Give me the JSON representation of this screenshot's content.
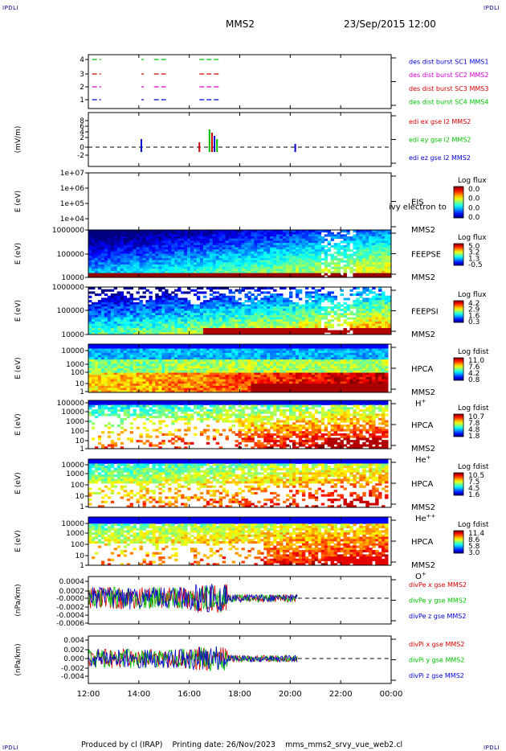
{
  "header": {
    "corner_label": "IPDLI",
    "spacecraft": "MMS2",
    "datetime": "23/Sep/2015 12:00"
  },
  "footer": {
    "produced_by": "Produced by cl (IRAP)",
    "printing_date": "Printing date: 26/Nov/2023",
    "script_name": "mms_mms2_srvy_vue_web2.cl"
  },
  "colors": {
    "red": "#d40000",
    "green": "#00c000",
    "blue": "#0000d0",
    "magenta": "#d000d0"
  },
  "chart_data": [
    {
      "id": "burst",
      "type": "line",
      "yticks": [
        "4",
        "3",
        "2",
        "1"
      ],
      "ylim": [
        0.5,
        4.5
      ],
      "legend": [
        {
          "label": "des dist burst SC1 MMS1",
          "color": "#0000d0"
        },
        {
          "label": "des dist burst SC2 MMS2",
          "color": "#d000d0"
        },
        {
          "label": "des dist burst SC3 MMS3",
          "color": "#d40000"
        },
        {
          "label": "des dist burst SC4 MMS4",
          "color": "#00c000"
        }
      ],
      "series": [
        {
          "level": 4,
          "color": "#00c000",
          "segments": [
            [
              12.15,
              12.5
            ],
            [
              14.1,
              14.2
            ],
            [
              14.6,
              15.1
            ],
            [
              16.4,
              17.2
            ]
          ]
        },
        {
          "level": 3,
          "color": "#d40000",
          "segments": [
            [
              12.15,
              12.5
            ],
            [
              14.1,
              14.2
            ],
            [
              14.6,
              15.1
            ],
            [
              16.4,
              17.2
            ]
          ]
        },
        {
          "level": 2,
          "color": "#d000d0",
          "segments": [
            [
              12.15,
              12.5
            ],
            [
              14.1,
              14.2
            ],
            [
              14.6,
              15.1
            ],
            [
              16.4,
              17.2
            ]
          ]
        },
        {
          "level": 1,
          "color": "#0000d0",
          "segments": [
            [
              12.15,
              12.5
            ],
            [
              14.1,
              14.2
            ],
            [
              14.6,
              15.1
            ],
            [
              16.4,
              17.2
            ]
          ]
        }
      ]
    },
    {
      "id": "edi",
      "type": "line",
      "ylabel": "(mV/m)",
      "yticks": [
        "8",
        "6",
        "4",
        "2",
        "0",
        "-2"
      ],
      "ylim": [
        -4,
        9
      ],
      "legend": [
        {
          "label": "edi ex gse l2 MMS2",
          "color": "#d40000"
        },
        {
          "label": "edi ey gse l2 MMS2",
          "color": "#00c000"
        },
        {
          "label": "edi ez gse l2 MMS2",
          "color": "#0000d0"
        }
      ]
    },
    {
      "id": "eis",
      "type": "heatmap",
      "ylabel": "E (eV)",
      "yticks": [
        "1e+07",
        "1e+06",
        "1e+05",
        "1e+04"
      ],
      "ylim": [
        10000,
        10000000
      ],
      "name": "EIS",
      "name2": "MMS2",
      "overlay": "ivy electron to",
      "cbar_title": "Log flux",
      "cbar_ticks": [
        "0.0",
        "0.0",
        "0.0",
        "0.0"
      ]
    },
    {
      "id": "feepse",
      "type": "heatmap",
      "ylabel": "E (eV)",
      "yticks": [
        "1000000",
        "100000",
        "10000"
      ],
      "ylim": [
        10000,
        1000000
      ],
      "name": "FEEPSE",
      "name2": "MMS2",
      "cbar_title": "Log flux",
      "cbar_ticks": [
        "5.0",
        "3.2",
        "1.3",
        "-0.5"
      ]
    },
    {
      "id": "feepsi",
      "type": "heatmap",
      "ylabel": "E (eV)",
      "yticks": [
        "1000000",
        "100000",
        "10000"
      ],
      "ylim": [
        10000,
        1000000
      ],
      "name": "FEEPSI",
      "name2": "MMS2",
      "cbar_title": "Log flux",
      "cbar_ticks": [
        "4.2",
        "2.9",
        "1.6",
        "0.3"
      ]
    },
    {
      "id": "hpca_h",
      "type": "heatmap",
      "ylabel": "E (eV)",
      "yticks": [
        "10000",
        "1000",
        "100",
        "10",
        "1"
      ],
      "ylim": [
        1,
        30000
      ],
      "name": "HPCA",
      "name2": "MMS2",
      "species": "H",
      "species_sup": "+",
      "cbar_title": "Log fdist",
      "cbar_ticks": [
        "11.0",
        "7.6",
        "4.2",
        "0.8"
      ]
    },
    {
      "id": "hpca_he",
      "type": "heatmap",
      "ylabel": "E (eV)",
      "yticks": [
        "100000",
        "10000",
        "1000",
        "100",
        "10",
        "1"
      ],
      "ylim": [
        1,
        100000
      ],
      "name": "HPCA",
      "name2": "MMS2",
      "species": "He",
      "species_sup": "+",
      "cbar_title": "Log fdist",
      "cbar_ticks": [
        "10.7",
        "7.8",
        "4.8",
        "1.8"
      ]
    },
    {
      "id": "hpca_hepp",
      "type": "heatmap",
      "ylabel": "E (eV)",
      "yticks": [
        "10000",
        "1000",
        "100",
        "10",
        "1"
      ],
      "ylim": [
        1,
        30000
      ],
      "name": "HPCA",
      "name2": "MMS2",
      "species": "He",
      "species_sup": "++",
      "cbar_title": "Log fdist",
      "cbar_ticks": [
        "10.5",
        "7.5",
        "4.5",
        "1.6"
      ]
    },
    {
      "id": "hpca_o",
      "type": "heatmap",
      "ylabel": "E (eV)",
      "yticks": [
        "10000",
        "1000",
        "100",
        "10",
        "1"
      ],
      "ylim": [
        1,
        30000
      ],
      "name": "HPCA",
      "name2": "MMS2",
      "species": "O",
      "species_sup": "+",
      "cbar_title": "Log fdist",
      "cbar_ticks": [
        "11.4",
        "8.6",
        "5.8",
        "3.0"
      ]
    },
    {
      "id": "divpe",
      "type": "line",
      "ylabel": "(nPa/km)",
      "yticks": [
        "0.0004",
        "0.0002",
        "-0.0000",
        "-0.0002",
        "-0.0004",
        "-0.0006"
      ],
      "ylim": [
        -0.0007,
        0.0005
      ],
      "legend": [
        {
          "label": "divPe x gse MMS2",
          "color": "#d40000"
        },
        {
          "label": "divPe y gse MMS2",
          "color": "#00c000"
        },
        {
          "label": "divPe z gse MMS2",
          "color": "#0000d0"
        }
      ]
    },
    {
      "id": "divpi",
      "type": "line",
      "ylabel": "(nPa/km)",
      "yticks": [
        "0.004",
        "0.002",
        "0.000",
        "-0.002",
        "-0.004"
      ],
      "ylim": [
        -0.0055,
        0.005
      ],
      "legend": [
        {
          "label": "divPi x gse MMS2",
          "color": "#d40000"
        },
        {
          "label": "divPi y gse MMS2",
          "color": "#00c000"
        },
        {
          "label": "divPi z gse MMS2",
          "color": "#0000d0"
        }
      ]
    }
  ],
  "xaxis": {
    "range_hours": [
      12,
      24
    ],
    "ticks": [
      {
        "hour": 12,
        "label": "12:00"
      },
      {
        "hour": 14,
        "label": "14:00"
      },
      {
        "hour": 16,
        "label": "16:00"
      },
      {
        "hour": 18,
        "label": "18:00"
      },
      {
        "hour": 20,
        "label": "20:00"
      },
      {
        "hour": 22,
        "label": "22:00"
      },
      {
        "hour": 24,
        "label": "00:00"
      }
    ]
  }
}
